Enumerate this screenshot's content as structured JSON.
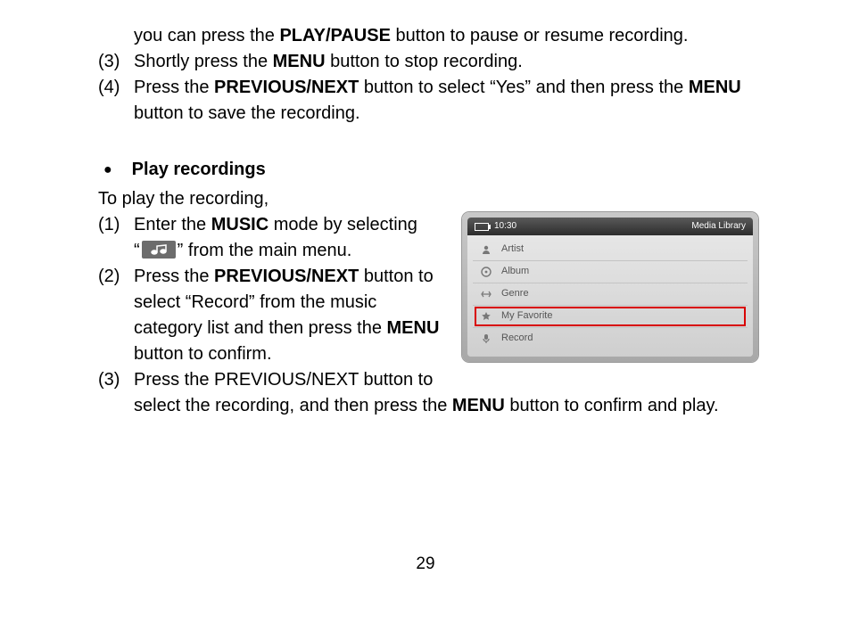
{
  "top": {
    "cont_line": {
      "pre": "you can press the ",
      "bold": "PLAY/PAUSE",
      "post": " button to pause or resume recording."
    },
    "item3": {
      "num": "(3)",
      "pre": "Shortly press the ",
      "bold": "MENU",
      "post": " button to stop recording."
    },
    "item4": {
      "num": "(4)",
      "pre": "Press the ",
      "bold1": "PREVIOUS/NEXT",
      "mid": " button to select “Yes” and then press the ",
      "bold2": "MENU",
      "line2": "button to save the recording."
    }
  },
  "section": {
    "heading": "Play recordings",
    "intro": "To play the recording,",
    "item1": {
      "num": "(1)",
      "pre": "Enter the ",
      "bold": "MUSIC",
      "post": " mode by selecting",
      "line2_pre": "“",
      "line2_post": "” from the main menu."
    },
    "item2": {
      "num": "(2)",
      "pre": "Press the ",
      "bold1": "PREVIOUS/NEXT",
      "post1": " button to",
      "line2": "select “Record” from the music",
      "line3_pre": "category list and then press the ",
      "bold2": "MENU",
      "line4": "button to confirm."
    },
    "item3": {
      "num": "(3)",
      "line1": "Press the PREVIOUS/NEXT button to",
      "line2_pre": "select the recording, and then press the ",
      "bold": "MENU",
      "line2_post": " button to confirm and play."
    }
  },
  "device": {
    "time": "10:30",
    "title": "Media Library",
    "items": [
      "Artist",
      "Album",
      "Genre",
      "My Favorite",
      "Record"
    ],
    "highlight_index": 3
  },
  "page_number": "29"
}
